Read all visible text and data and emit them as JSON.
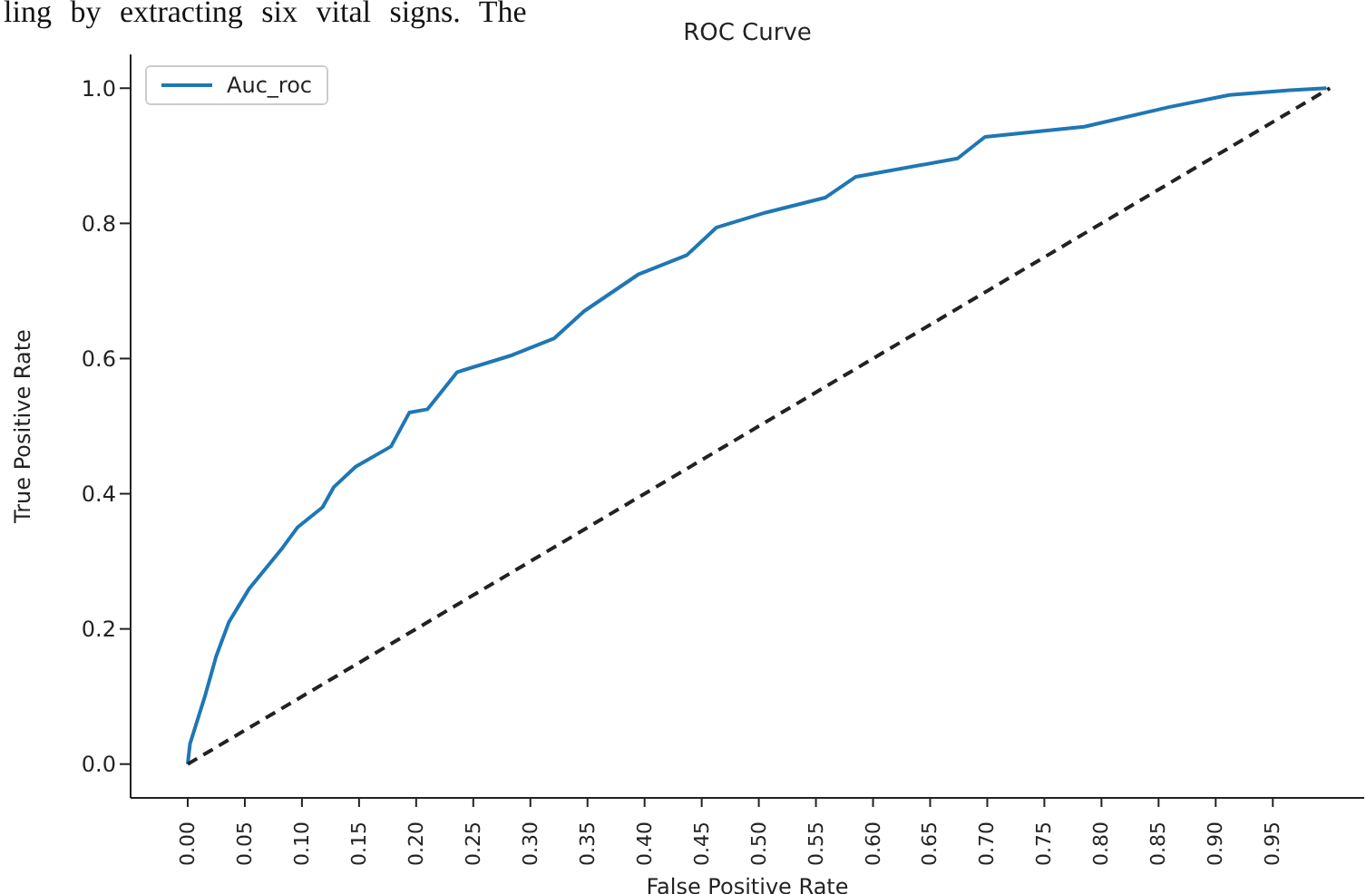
{
  "chart_data": {
    "type": "line",
    "title": "ROC Curve",
    "xlabel": "False Positive Rate",
    "ylabel": "True Positive Rate",
    "annotations": [
      "ling by extracting six vital signs. The"
    ],
    "xlim": [
      -0.05,
      1.03
    ],
    "ylim": [
      -0.05,
      1.05
    ],
    "xticks": [
      {
        "value": 0,
        "label": "0.00"
      },
      {
        "value": 0.05,
        "label": "0.05"
      },
      {
        "value": 0.1,
        "label": "0.10"
      },
      {
        "value": 0.15,
        "label": "0.15"
      },
      {
        "value": 0.2,
        "label": "0.20"
      },
      {
        "value": 0.25,
        "label": "0.25"
      },
      {
        "value": 0.3,
        "label": "0.30"
      },
      {
        "value": 0.35,
        "label": "0.35"
      },
      {
        "value": 0.4,
        "label": "0.40"
      },
      {
        "value": 0.45,
        "label": "0.45"
      },
      {
        "value": 0.5,
        "label": "0.50"
      },
      {
        "value": 0.55,
        "label": "0.55"
      },
      {
        "value": 0.6,
        "label": "0.60"
      },
      {
        "value": 0.65,
        "label": "0.65"
      },
      {
        "value": 0.7,
        "label": "0.70"
      },
      {
        "value": 0.75,
        "label": "0.75"
      },
      {
        "value": 0.8,
        "label": "0.80"
      },
      {
        "value": 0.85,
        "label": "0.85"
      },
      {
        "value": 0.9,
        "label": "0.90"
      },
      {
        "value": 0.95,
        "label": "0.95"
      }
    ],
    "yticks": [
      {
        "value": 0,
        "label": "0.0"
      },
      {
        "value": 0.2,
        "label": "0.2"
      },
      {
        "value": 0.4,
        "label": "0.4"
      },
      {
        "value": 0.6,
        "label": "0.6"
      },
      {
        "value": 0.8,
        "label": "0.8"
      },
      {
        "value": 1,
        "label": "1.0"
      }
    ],
    "grid": false,
    "legend": "top left",
    "marker": "none",
    "series": [
      {
        "name": "Auc_roc",
        "color": "#1f77b4",
        "line_style": "solid",
        "x": [
          0,
          0.002,
          0.015,
          0.025,
          0.036,
          0.054,
          0.083,
          0.096,
          0.118,
          0.128,
          0.147,
          0.178,
          0.194,
          0.21,
          0.236,
          0.284,
          0.321,
          0.347,
          0.395,
          0.437,
          0.463,
          0.506,
          0.558,
          0.585,
          0.674,
          0.698,
          0.785,
          0.859,
          0.912,
          0.965,
          0.997
        ],
        "values": [
          0,
          0.03,
          0.1,
          0.16,
          0.21,
          0.26,
          0.32,
          0.35,
          0.38,
          0.41,
          0.44,
          0.47,
          0.52,
          0.525,
          0.58,
          0.605,
          0.63,
          0.67,
          0.725,
          0.753,
          0.794,
          0.816,
          0.838,
          0.869,
          0.896,
          0.928,
          0.943,
          0.972,
          0.99,
          0.997,
          1
        ]
      },
      {
        "color": "#222222",
        "line_style": "dashed",
        "x": [
          0,
          1
        ],
        "values": [
          0,
          1
        ]
      }
    ]
  }
}
